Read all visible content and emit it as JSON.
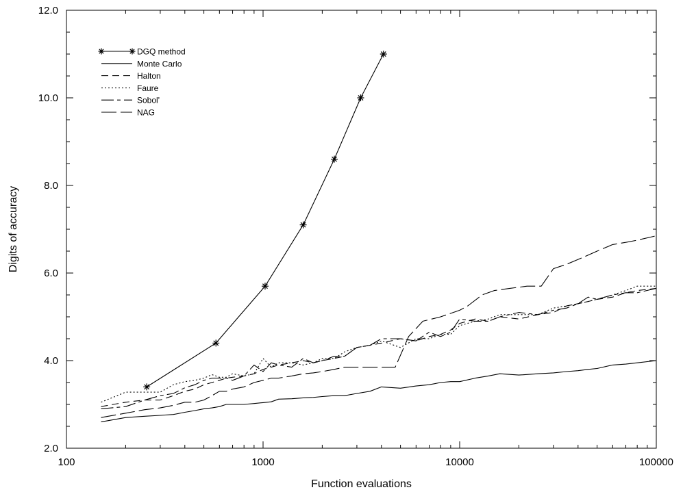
{
  "chart_data": {
    "type": "line",
    "title": "",
    "xlabel": "Function evaluations",
    "ylabel": "Digits of accuracy",
    "x_scale": "log",
    "xlim": [
      100,
      100000
    ],
    "ylim": [
      2.0,
      12.0
    ],
    "x_ticks": [
      100,
      1000,
      10000,
      100000
    ],
    "x_tick_labels": [
      "100",
      "1000",
      "10000",
      "100000"
    ],
    "y_ticks": [
      2,
      4,
      6,
      8,
      10,
      12
    ],
    "y_tick_labels": [
      "2.0",
      "4.0",
      "6.0",
      "8.0",
      "10.0",
      "12.0"
    ],
    "grid": false,
    "legend_position": "top-left",
    "series": [
      {
        "name": "DGQ method",
        "style": "solid-star",
        "x": [
          256,
          576,
          1024,
          1600,
          2304,
          3136,
          4096
        ],
        "y": [
          3.4,
          4.4,
          5.7,
          7.1,
          8.6,
          10.0,
          11.0
        ]
      },
      {
        "name": "Monte Carlo",
        "style": "solid",
        "x": [
          150,
          200,
          250,
          300,
          350,
          400,
          450,
          500,
          550,
          600,
          650,
          700,
          800,
          900,
          1000,
          1100,
          1200,
          1400,
          1600,
          1800,
          2000,
          2300,
          2600,
          3000,
          3500,
          4000,
          5000,
          6000,
          7000,
          8000,
          9000,
          10000,
          12000,
          14000,
          16000,
          20000,
          25000,
          30000,
          35000,
          40000,
          45000,
          50000,
          60000,
          70000,
          80000,
          100000
        ],
        "y": [
          2.6,
          2.7,
          2.73,
          2.75,
          2.77,
          2.82,
          2.86,
          2.9,
          2.92,
          2.95,
          3.0,
          3.0,
          3.0,
          3.02,
          3.04,
          3.06,
          3.12,
          3.13,
          3.15,
          3.16,
          3.18,
          3.2,
          3.2,
          3.25,
          3.3,
          3.4,
          3.37,
          3.42,
          3.45,
          3.5,
          3.52,
          3.52,
          3.6,
          3.65,
          3.7,
          3.67,
          3.7,
          3.72,
          3.75,
          3.77,
          3.8,
          3.82,
          3.9,
          3.92,
          3.95,
          4.0
        ]
      },
      {
        "name": "Halton",
        "style": "short-dash",
        "x": [
          150,
          200,
          250,
          300,
          350,
          400,
          450,
          500,
          550,
          600,
          650,
          700,
          800,
          900,
          1000,
          1100,
          1200,
          1400,
          1600,
          1800,
          2000,
          2300,
          2600,
          3000,
          3500,
          4000,
          5000,
          6000,
          7000,
          8000,
          9000,
          10000,
          12000,
          14000,
          16000,
          20000,
          25000,
          30000,
          35000,
          40000,
          45000,
          50000,
          60000,
          70000,
          80000,
          100000
        ],
        "y": [
          2.95,
          3.05,
          3.1,
          3.1,
          3.2,
          3.3,
          3.35,
          3.45,
          3.5,
          3.55,
          3.6,
          3.62,
          3.65,
          3.7,
          3.8,
          3.85,
          3.9,
          3.95,
          4.0,
          3.95,
          4.0,
          4.05,
          4.1,
          4.3,
          4.35,
          4.4,
          4.5,
          4.45,
          4.55,
          4.6,
          4.7,
          4.85,
          4.95,
          4.9,
          5.0,
          4.95,
          5.05,
          5.1,
          5.25,
          5.3,
          5.35,
          5.4,
          5.45,
          5.55,
          5.6,
          5.65
        ]
      },
      {
        "name": "Faure",
        "style": "dotted",
        "x": [
          150,
          200,
          250,
          300,
          350,
          400,
          450,
          500,
          550,
          600,
          650,
          700,
          800,
          900,
          1000,
          1100,
          1200,
          1400,
          1600,
          1800,
          2000,
          2300,
          2600,
          3000,
          3500,
          4000,
          5000,
          6000,
          7000,
          8000,
          9000,
          10000,
          12000,
          14000,
          16000,
          20000,
          25000,
          30000,
          35000,
          40000,
          45000,
          50000,
          60000,
          70000,
          80000,
          100000
        ],
        "y": [
          3.05,
          3.28,
          3.28,
          3.28,
          3.45,
          3.52,
          3.55,
          3.6,
          3.68,
          3.62,
          3.62,
          3.7,
          3.65,
          3.7,
          4.05,
          3.85,
          3.95,
          3.95,
          3.9,
          3.95,
          4.05,
          4.05,
          4.2,
          4.3,
          4.35,
          4.45,
          4.3,
          4.5,
          4.5,
          4.6,
          4.6,
          4.8,
          4.9,
          4.95,
          5.05,
          5.05,
          5.05,
          5.2,
          5.25,
          5.3,
          5.35,
          5.4,
          5.5,
          5.6,
          5.7,
          5.7
        ]
      },
      {
        "name": "Sobol'",
        "style": "long-short-dash",
        "x": [
          150,
          200,
          250,
          300,
          350,
          400,
          450,
          500,
          550,
          600,
          650,
          700,
          800,
          900,
          1000,
          1100,
          1200,
          1400,
          1600,
          1800,
          2000,
          2300,
          2600,
          3000,
          3500,
          4000,
          5000,
          6000,
          7000,
          8000,
          9000,
          10000,
          12000,
          14000,
          16000,
          20000,
          25000,
          30000,
          35000,
          40000,
          45000,
          50000,
          60000,
          70000,
          80000,
          100000
        ],
        "y": [
          2.9,
          2.95,
          3.1,
          3.2,
          3.25,
          3.38,
          3.45,
          3.55,
          3.6,
          3.6,
          3.6,
          3.55,
          3.65,
          3.9,
          3.75,
          3.95,
          3.9,
          3.85,
          4.05,
          3.95,
          4.0,
          4.1,
          4.1,
          4.3,
          4.35,
          4.5,
          4.5,
          4.45,
          4.65,
          4.55,
          4.65,
          4.95,
          4.9,
          4.9,
          5.0,
          5.1,
          5.05,
          5.15,
          5.2,
          5.3,
          5.45,
          5.4,
          5.5,
          5.55,
          5.55,
          5.65
        ]
      },
      {
        "name": "NAG",
        "style": "long-dash",
        "x": [
          150,
          200,
          250,
          300,
          350,
          400,
          450,
          500,
          550,
          600,
          650,
          700,
          800,
          900,
          1000,
          1100,
          1200,
          1400,
          1600,
          1800,
          2000,
          2300,
          2600,
          3000,
          3500,
          4000,
          4700,
          5500,
          6500,
          8000,
          10000,
          11000,
          13000,
          15000,
          18000,
          22000,
          26000,
          30000,
          35000,
          42000,
          50000,
          60000,
          70000,
          80000,
          100000
        ],
        "y": [
          2.7,
          2.8,
          2.88,
          2.92,
          2.98,
          3.05,
          3.05,
          3.1,
          3.2,
          3.3,
          3.3,
          3.35,
          3.4,
          3.5,
          3.55,
          3.6,
          3.6,
          3.65,
          3.7,
          3.72,
          3.75,
          3.8,
          3.85,
          3.85,
          3.85,
          3.85,
          3.85,
          4.55,
          4.9,
          5.0,
          5.15,
          5.25,
          5.5,
          5.6,
          5.65,
          5.7,
          5.7,
          6.1,
          6.2,
          6.35,
          6.5,
          6.65,
          6.7,
          6.75,
          6.85
        ]
      }
    ]
  }
}
